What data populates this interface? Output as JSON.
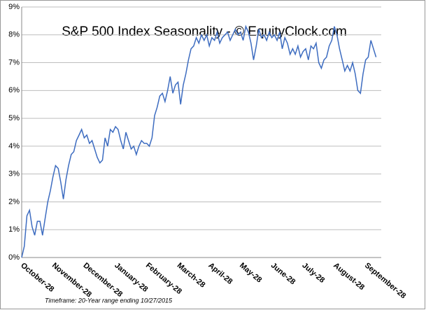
{
  "chart_data": {
    "type": "line",
    "title": "S&P 500 Index Seasonality - © EquityClock.com",
    "footnote": "Timeframe: 20-Year range ending 10/27/2015",
    "categories": [
      "October-28",
      null,
      null,
      null,
      null,
      null,
      null,
      null,
      null,
      null,
      null,
      null,
      "November-28",
      null,
      null,
      null,
      null,
      null,
      null,
      null,
      null,
      null,
      null,
      null,
      "December-28",
      null,
      null,
      null,
      null,
      null,
      null,
      null,
      null,
      null,
      null,
      null,
      "January-28",
      null,
      null,
      null,
      null,
      null,
      null,
      null,
      null,
      null,
      null,
      null,
      "February-28",
      null,
      null,
      null,
      null,
      null,
      null,
      null,
      null,
      null,
      null,
      null,
      "March-28",
      null,
      null,
      null,
      null,
      null,
      null,
      null,
      null,
      null,
      null,
      null,
      "April-28",
      null,
      null,
      null,
      null,
      null,
      null,
      null,
      null,
      null,
      null,
      null,
      "May-28",
      null,
      null,
      null,
      null,
      null,
      null,
      null,
      null,
      null,
      null,
      null,
      "June-28",
      null,
      null,
      null,
      null,
      null,
      null,
      null,
      null,
      null,
      null,
      null,
      "July-28",
      null,
      null,
      null,
      null,
      null,
      null,
      null,
      null,
      null,
      null,
      null,
      "August-28",
      null,
      null,
      null,
      null,
      null,
      null,
      null,
      null,
      null,
      null,
      null,
      "September-28",
      null,
      null,
      null,
      null
    ],
    "series": [
      {
        "name": "S&P 500",
        "color": "#3d6cc0",
        "values": [
          0,
          0.4,
          1.5,
          1.7,
          1.1,
          0.8,
          1.3,
          1.3,
          0.8,
          1.4,
          2.0,
          2.4,
          2.9,
          3.3,
          3.2,
          2.7,
          2.1,
          2.8,
          3.3,
          3.7,
          3.8,
          4.2,
          4.4,
          4.6,
          4.3,
          4.4,
          4.1,
          4.2,
          3.9,
          3.6,
          3.4,
          3.5,
          4.3,
          4.0,
          4.6,
          4.5,
          4.7,
          4.6,
          4.2,
          3.9,
          4.5,
          4.2,
          3.9,
          4.0,
          3.7,
          4.0,
          4.2,
          4.1,
          4.1,
          4.0,
          4.3,
          5.1,
          5.4,
          5.8,
          5.9,
          5.6,
          6.0,
          6.5,
          5.9,
          6.2,
          6.3,
          5.5,
          6.2,
          6.6,
          7.1,
          7.5,
          7.6,
          7.9,
          7.7,
          8.0,
          7.8,
          8.0,
          7.6,
          7.9,
          7.8,
          8.1,
          7.7,
          7.9,
          8.0,
          8.1,
          7.8,
          8.0,
          8.2,
          8.0,
          8.1,
          7.8,
          8.3,
          8.1,
          7.7,
          7.1,
          7.6,
          8.2,
          7.9,
          8.0,
          7.8,
          8.1,
          7.9,
          8.0,
          7.8,
          8.1,
          7.5,
          7.9,
          7.7,
          7.3,
          7.5,
          7.3,
          7.6,
          7.2,
          7.4,
          7.5,
          7.1,
          7.6,
          7.5,
          7.7,
          7.0,
          6.8,
          7.1,
          7.2,
          7.6,
          7.8,
          8.3,
          8.0,
          7.5,
          7.1,
          6.7,
          6.9,
          6.7,
          7.0,
          6.6,
          6.0,
          5.9,
          6.6,
          7.1,
          7.2,
          7.8,
          7.5,
          7.2
        ]
      }
    ],
    "ylim": [
      0,
      9
    ],
    "yticks": [
      {
        "value": 0,
        "label": "0%"
      },
      {
        "value": 1,
        "label": "1%"
      },
      {
        "value": 2,
        "label": "2%"
      },
      {
        "value": 3,
        "label": "3%"
      },
      {
        "value": 4,
        "label": "4%"
      },
      {
        "value": 5,
        "label": "5%"
      },
      {
        "value": 6,
        "label": "6%"
      },
      {
        "value": 7,
        "label": "7%"
      },
      {
        "value": 8,
        "label": "8%"
      },
      {
        "value": 9,
        "label": "9%"
      }
    ],
    "grid": true
  }
}
